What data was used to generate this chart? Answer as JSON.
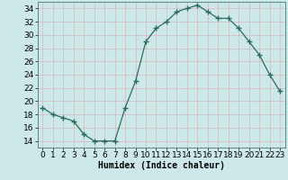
{
  "x": [
    0,
    1,
    2,
    3,
    4,
    5,
    6,
    7,
    8,
    9,
    10,
    11,
    12,
    13,
    14,
    15,
    16,
    17,
    18,
    19,
    20,
    21,
    22,
    23
  ],
  "y": [
    19,
    18,
    17.5,
    17,
    15,
    14,
    14,
    14,
    19,
    23,
    29,
    31,
    32,
    33.5,
    34,
    34.5,
    33.5,
    32.5,
    32.5,
    31,
    29,
    27,
    24,
    21.5
  ],
  "line_color": "#2e6b5e",
  "marker": "D",
  "marker_size": 2.0,
  "bg_color": "#cde8e8",
  "grid_color": "#c0d8d8",
  "xlabel": "Humidex (Indice chaleur)",
  "xlabel_fontsize": 7,
  "ylim": [
    13,
    35
  ],
  "xlim": [
    -0.5,
    23.5
  ],
  "yticks": [
    14,
    16,
    18,
    20,
    22,
    24,
    26,
    28,
    30,
    32,
    34
  ],
  "xticks": [
    0,
    1,
    2,
    3,
    4,
    5,
    6,
    7,
    8,
    9,
    10,
    11,
    12,
    13,
    14,
    15,
    16,
    17,
    18,
    19,
    20,
    21,
    22,
    23
  ],
  "tick_fontsize": 6.5
}
